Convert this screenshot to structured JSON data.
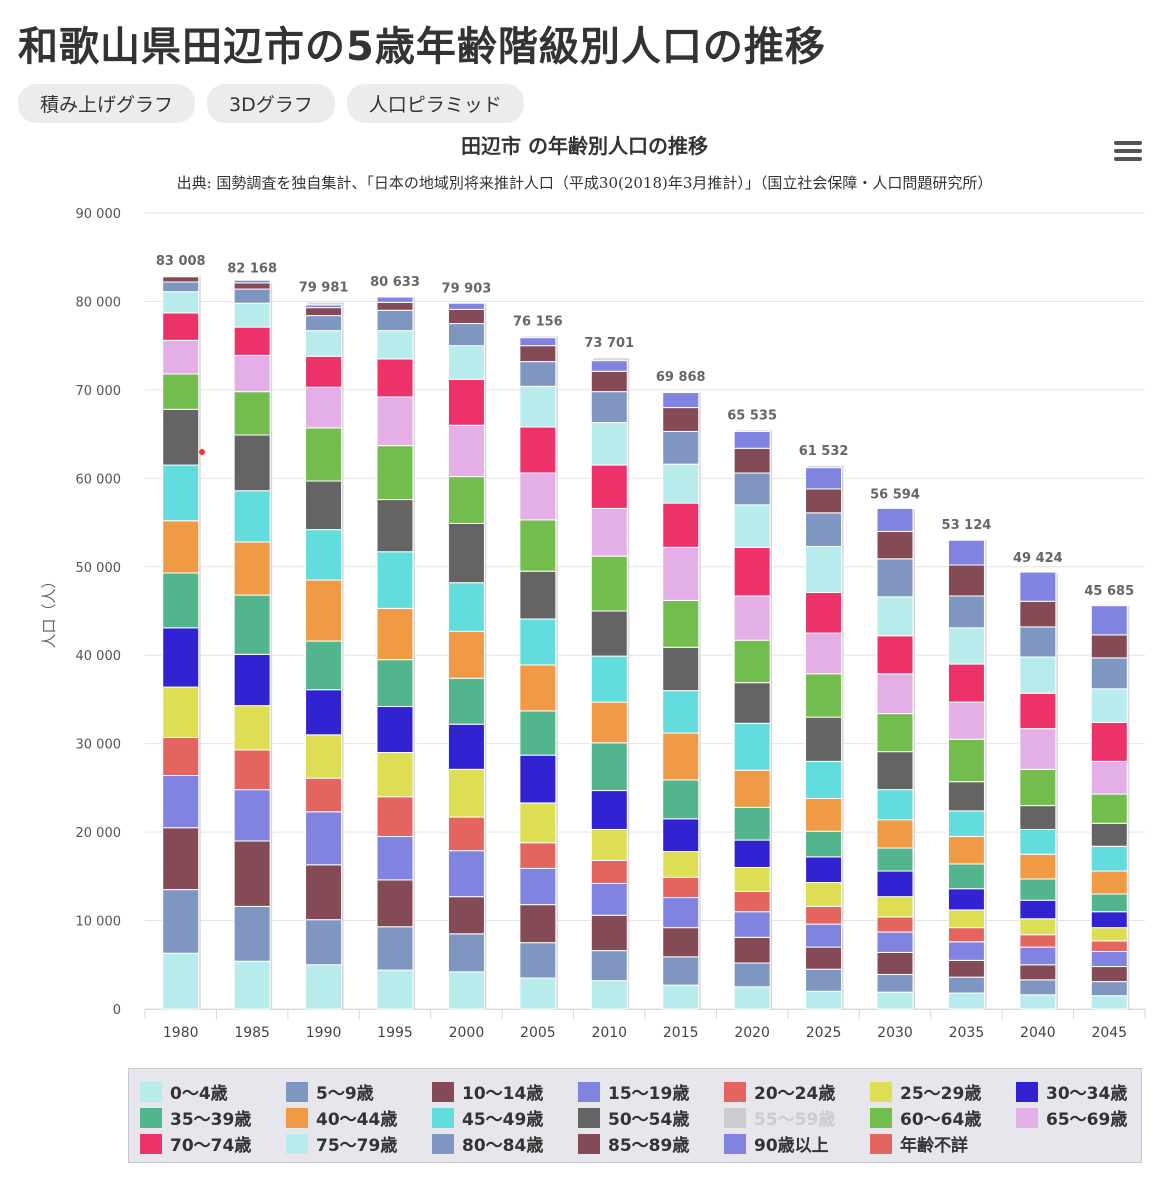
{
  "page_title": "和歌山県田辺市の5歳年齢階級別人口の推移",
  "tabs": [
    "積み上げグラフ",
    "3Dグラフ",
    "人口ピラミッド"
  ],
  "menu_icon": "hamburger-menu-icon",
  "chart_data": {
    "type": "bar",
    "stacked": true,
    "title": "田辺市 の年齢別人口の推移",
    "subtitle": "出典: 国勢調査を独自集計、「日本の地域別将来推計人口（平成30(2018)年3月推計）」（国立社会保障・人口問題研究所）",
    "xlabel": "",
    "ylabel": "人口（人）",
    "ylim": [
      0,
      90000
    ],
    "yticks": [
      0,
      10000,
      20000,
      30000,
      40000,
      50000,
      60000,
      70000,
      80000,
      90000
    ],
    "ytick_labels": [
      "0",
      "10 000",
      "20 000",
      "30 000",
      "40 000",
      "50 000",
      "60 000",
      "70 000",
      "80 000",
      "90 000"
    ],
    "grid": true,
    "legend_position": "bottom",
    "categories": [
      "1980",
      "1985",
      "1990",
      "1995",
      "2000",
      "2005",
      "2010",
      "2015",
      "2020",
      "2025",
      "2030",
      "2035",
      "2040",
      "2045"
    ],
    "totals": [
      83008,
      82168,
      79981,
      80633,
      79903,
      76156,
      73701,
      69868,
      65535,
      61532,
      56594,
      53124,
      49424,
      45685
    ],
    "total_labels": [
      "83 008",
      "82 168",
      "79 981",
      "80 633",
      "79 903",
      "76 156",
      "73 701",
      "69 868",
      "65 535",
      "61 532",
      "56 594",
      "53 124",
      "49 424",
      "45 685"
    ],
    "series": [
      {
        "name": "0〜4歳",
        "color": "#b8ecec",
        "hidden": false,
        "values": [
          6300,
          5400,
          5000,
          4400,
          4200,
          3500,
          3200,
          2700,
          2500,
          2000,
          1900,
          1800,
          1600,
          1500
        ]
      },
      {
        "name": "5〜9歳",
        "color": "#7f96c0",
        "hidden": false,
        "values": [
          7200,
          6200,
          5100,
          4900,
          4300,
          4000,
          3400,
          3200,
          2700,
          2500,
          2000,
          1800,
          1700,
          1600
        ]
      },
      {
        "name": "10〜14歳",
        "color": "#844a55",
        "hidden": false,
        "values": [
          7000,
          7400,
          6200,
          5300,
          4200,
          4300,
          4000,
          3300,
          2900,
          2500,
          2500,
          1900,
          1700,
          1700
        ]
      },
      {
        "name": "15〜19歳",
        "color": "#8084e0",
        "hidden": false,
        "values": [
          5900,
          5800,
          6000,
          4900,
          5200,
          4100,
          3600,
          3400,
          2900,
          2600,
          2300,
          2100,
          2000,
          1700
        ]
      },
      {
        "name": "20〜24歳",
        "color": "#e4655f",
        "hidden": false,
        "values": [
          4300,
          4500,
          3800,
          4500,
          3800,
          2900,
          2600,
          2300,
          2300,
          2000,
          1700,
          1600,
          1400,
          1200
        ]
      },
      {
        "name": "25〜29歳",
        "color": "#dede55",
        "hidden": false,
        "values": [
          5700,
          5000,
          4900,
          5000,
          5400,
          4500,
          3500,
          2900,
          2700,
          2700,
          2300,
          2000,
          1800,
          1500
        ]
      },
      {
        "name": "30〜34歳",
        "color": "#3123d2",
        "hidden": false,
        "values": [
          6700,
          5800,
          5100,
          5200,
          5100,
          5400,
          4400,
          3700,
          3100,
          2900,
          2900,
          2400,
          2100,
          1800
        ]
      },
      {
        "name": "35〜39歳",
        "color": "#52b58d",
        "hidden": false,
        "values": [
          6200,
          6700,
          5500,
          5300,
          5200,
          5000,
          5400,
          4400,
          3700,
          2900,
          2600,
          2800,
          2400,
          2000
        ]
      },
      {
        "name": "40〜44歳",
        "color": "#f09a45",
        "hidden": false,
        "values": [
          5900,
          6000,
          6900,
          5800,
          5300,
          5200,
          4600,
          5300,
          4200,
          3700,
          3200,
          3100,
          2800,
          2600
        ]
      },
      {
        "name": "45〜49歳",
        "color": "#62dcdc",
        "hidden": false,
        "values": [
          6300,
          5800,
          5700,
          6400,
          5500,
          5200,
          5200,
          4800,
          5300,
          4200,
          3400,
          2900,
          2800,
          2800
        ]
      },
      {
        "name": "50〜54歳",
        "color": "#646464",
        "hidden": false,
        "values": [
          6300,
          6300,
          5500,
          5900,
          6700,
          5400,
          5100,
          4900,
          4600,
          5000,
          4300,
          3300,
          2700,
          2600
        ]
      },
      {
        "name": "55〜59歳",
        "color": "#cccccc",
        "hidden": true,
        "values": null
      },
      {
        "name": "60〜64歳",
        "color": "#73bd4e",
        "hidden": false,
        "values": [
          4000,
          4900,
          6000,
          6100,
          5300,
          5800,
          6200,
          5300,
          4800,
          4900,
          4300,
          4800,
          4100,
          3300
        ]
      },
      {
        "name": "65〜69歳",
        "color": "#e4aee6",
        "hidden": false,
        "values": [
          3800,
          4100,
          4600,
          5500,
          5800,
          5300,
          5400,
          6000,
          5000,
          4600,
          4500,
          4200,
          4600,
          3700
        ]
      },
      {
        "name": "70〜74歳",
        "color": "#ec3268",
        "hidden": false,
        "values": [
          3100,
          3200,
          3500,
          4300,
          5200,
          5200,
          4900,
          5000,
          5500,
          4600,
          4300,
          4300,
          4000,
          4400
        ]
      },
      {
        "name": "75〜79歳",
        "color": "#b8ecec",
        "hidden": false,
        "values": [
          2400,
          2700,
          2900,
          3200,
          3800,
          4600,
          4800,
          4400,
          4800,
          5200,
          4400,
          4100,
          4100,
          3800
        ]
      },
      {
        "name": "80〜84歳",
        "color": "#7f96c0",
        "hidden": false,
        "values": [
          1100,
          1600,
          1700,
          2300,
          2500,
          2800,
          3500,
          3700,
          3600,
          3800,
          4300,
          3600,
          3400,
          3500
        ]
      },
      {
        "name": "85〜89歳",
        "color": "#844a55",
        "hidden": false,
        "values": [
          600,
          700,
          900,
          900,
          1600,
          1800,
          2300,
          2700,
          2800,
          2700,
          3100,
          3500,
          2900,
          2600
        ]
      },
      {
        "name": "90歳以上",
        "color": "#8084e0",
        "hidden": false,
        "values": [
          100,
          300,
          300,
          600,
          700,
          900,
          1200,
          1700,
          1900,
          2400,
          2600,
          2800,
          3300,
          3300
        ]
      },
      {
        "name": "年齢不詳",
        "color": "#e4655f",
        "hidden": false,
        "values": [
          0,
          0,
          0,
          0,
          0,
          0,
          0,
          0,
          0,
          0,
          0,
          0,
          0,
          0
        ]
      }
    ]
  }
}
